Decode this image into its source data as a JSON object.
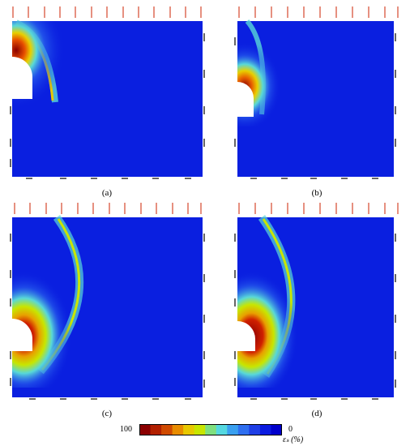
{
  "panels": [
    {
      "caption": "(a)"
    },
    {
      "caption": "(b)"
    },
    {
      "caption": "(c)"
    },
    {
      "caption": "(d)"
    }
  ],
  "colorbar": {
    "max_label": "100",
    "min_label": "0",
    "unit_label": "εₛ (%)",
    "colors": [
      "#8b0000",
      "#b22000",
      "#d04a00",
      "#e88c00",
      "#e8c800",
      "#c8e600",
      "#7fe07f",
      "#55d8e0",
      "#3aa0f0",
      "#2f6ff0",
      "#1f3fe6",
      "#0b1be0",
      "#0000cc"
    ]
  },
  "colors": {
    "background_field": "#0a1fe0",
    "load_arrow": "#cc2200",
    "support": "#000000"
  }
}
